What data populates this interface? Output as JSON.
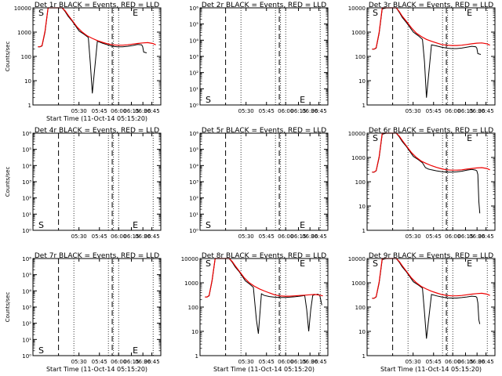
{
  "chart_data": [
    {
      "type": "line",
      "title": "Det 1r BLACK = Events, RED = LLD",
      "xlabel": "Start Time (11-Oct-14 05:15:20)",
      "ylabel": "Counts/sec",
      "scale": "log",
      "ylim": [
        1,
        10000
      ],
      "yticks": [
        "10000",
        "1000",
        "100",
        "10",
        "1"
      ],
      "xticks": [
        "05:30",
        "05:45",
        "06:00",
        "06:15",
        "06:30",
        "06:45"
      ],
      "markers": [
        {
          "label": "S",
          "x": 5.3
        },
        {
          "label": "E",
          "x": 6.32
        }
      ],
      "series": [
        {
          "color": "#000000",
          "x": [
            5.26,
            5.28,
            5.3,
            5.33,
            5.36,
            5.4,
            5.45,
            5.48,
            5.5,
            5.53,
            5.56,
            5.6,
            5.67,
            5.72,
            5.76,
            5.78,
            5.8,
            5.85,
            5.9,
            5.95,
            6.0,
            6.05,
            6.1,
            6.15,
            6.2,
            6.25,
            6.29,
            6.3,
            6.31,
            6.34
          ],
          "y": [
            250,
            250,
            270,
            1000,
            10000,
            12000,
            12000,
            12000,
            10000,
            7000,
            4500,
            2800,
            1100,
            800,
            600,
            50,
            3,
            420,
            350,
            300,
            260,
            250,
            250,
            260,
            280,
            310,
            300,
            250,
            150,
            140
          ]
        },
        {
          "color": "#ee0000",
          "x": [
            5.26,
            5.28,
            5.3,
            5.33,
            5.36,
            5.4,
            5.45,
            5.5,
            5.53,
            5.56,
            5.6,
            5.65,
            5.7,
            5.75,
            5.8,
            5.85,
            5.9,
            5.95,
            6.0,
            6.05,
            6.1,
            6.15,
            6.2,
            6.25,
            6.3,
            6.35,
            6.4,
            6.43
          ],
          "y": [
            250,
            250,
            280,
            1100,
            10000,
            12000,
            12000,
            10000,
            7500,
            5000,
            3000,
            1600,
            1000,
            700,
            550,
            450,
            380,
            330,
            300,
            290,
            290,
            300,
            320,
            340,
            360,
            370,
            340,
            300
          ]
        }
      ]
    },
    {
      "type": "line",
      "title": "Det 2r BLACK = Events, RED = LLD",
      "xlabel": "",
      "ylabel": "",
      "scale": "log",
      "ylim": [
        1,
        1000000
      ],
      "yticks": [
        "10⁶",
        "10⁵",
        "10⁴",
        "10³",
        "10²",
        "10¹",
        "10⁰"
      ],
      "xticks": [
        "05:30",
        "05:45",
        "06:00",
        "06:15",
        "06:30",
        "06:45"
      ],
      "markers": [
        {
          "label": "S",
          "x": 5.3
        },
        {
          "label": "E",
          "x": 6.32
        }
      ],
      "series": []
    },
    {
      "type": "line",
      "title": "Det 3r BLACK = Events, RED = LLD",
      "xlabel": "",
      "ylabel": "",
      "scale": "log",
      "ylim": [
        1,
        10000
      ],
      "yticks": [
        "10000",
        "1000",
        "100",
        "10",
        "1"
      ],
      "xticks": [
        "05:30",
        "05:45",
        "06:00",
        "06:15",
        "06:30",
        "06:45"
      ],
      "markers": [
        {
          "label": "S",
          "x": 5.3
        },
        {
          "label": "E",
          "x": 6.32
        }
      ],
      "series": [
        {
          "color": "#000000",
          "x": [
            5.26,
            5.28,
            5.3,
            5.33,
            5.36,
            5.4,
            5.45,
            5.48,
            5.5,
            5.53,
            5.56,
            5.6,
            5.67,
            5.72,
            5.76,
            5.78,
            5.8,
            5.85,
            5.9,
            5.95,
            6.0,
            6.05,
            6.1,
            6.15,
            6.2,
            6.25,
            6.29,
            6.3,
            6.31,
            6.34
          ],
          "y": [
            200,
            200,
            220,
            900,
            9000,
            12000,
            12000,
            12000,
            10000,
            6500,
            4000,
            2500,
            1000,
            700,
            500,
            60,
            2,
            300,
            270,
            240,
            220,
            210,
            210,
            220,
            240,
            260,
            250,
            220,
            130,
            120
          ]
        },
        {
          "color": "#ee0000",
          "x": [
            5.26,
            5.28,
            5.3,
            5.33,
            5.36,
            5.4,
            5.45,
            5.5,
            5.53,
            5.56,
            5.6,
            5.65,
            5.7,
            5.75,
            5.8,
            5.85,
            5.9,
            5.95,
            6.0,
            6.05,
            6.1,
            6.15,
            6.2,
            6.25,
            6.3,
            6.35,
            6.4,
            6.43
          ],
          "y": [
            200,
            200,
            230,
            1000,
            10000,
            12000,
            12000,
            10000,
            7000,
            4500,
            2800,
            1500,
            900,
            650,
            500,
            420,
            360,
            310,
            290,
            280,
            280,
            290,
            310,
            330,
            350,
            360,
            330,
            290
          ]
        }
      ]
    },
    {
      "type": "line",
      "title": "Det 4r BLACK = Events, RED = LLD",
      "xlabel": "",
      "ylabel": "Counts/sec",
      "scale": "log",
      "ylim": [
        1,
        1000000
      ],
      "yticks": [
        "10⁶",
        "10⁵",
        "10⁴",
        "10³",
        "10²",
        "10¹",
        "10⁰"
      ],
      "xticks": [
        "05:30",
        "05:45",
        "06:00",
        "06:15",
        "06:30",
        "06:45"
      ],
      "markers": [
        {
          "label": "S",
          "x": 5.3
        },
        {
          "label": "E",
          "x": 6.32
        }
      ],
      "series": []
    },
    {
      "type": "line",
      "title": "Det 5r BLACK = Events, RED = LLD",
      "xlabel": "",
      "ylabel": "",
      "scale": "log",
      "ylim": [
        1,
        1000000
      ],
      "yticks": [
        "10⁶",
        "10⁵",
        "10⁴",
        "10³",
        "10²",
        "10¹",
        "10⁰"
      ],
      "xticks": [
        "05:30",
        "05:45",
        "06:00",
        "06:15",
        "06:30",
        "06:45"
      ],
      "markers": [
        {
          "label": "S",
          "x": 5.3
        },
        {
          "label": "E",
          "x": 6.32
        }
      ],
      "series": []
    },
    {
      "type": "line",
      "title": "Det 6r BLACK = Events, RED = LLD",
      "xlabel": "",
      "ylabel": "",
      "scale": "log",
      "ylim": [
        1,
        10000
      ],
      "yticks": [
        "10000",
        "1000",
        "100",
        "10",
        "1"
      ],
      "xticks": [
        "05:30",
        "05:45",
        "06:00",
        "06:15",
        "06:30",
        "06:45"
      ],
      "markers": [
        {
          "label": "S",
          "x": 5.3
        },
        {
          "label": "E",
          "x": 6.32
        }
      ],
      "series": [
        {
          "color": "#000000",
          "x": [
            5.26,
            5.28,
            5.3,
            5.33,
            5.36,
            5.4,
            5.45,
            5.48,
            5.5,
            5.53,
            5.56,
            5.6,
            5.67,
            5.72,
            5.76,
            5.79,
            5.82,
            5.85,
            5.9,
            5.95,
            6.0,
            6.05,
            6.1,
            6.15,
            6.2,
            6.25,
            6.29,
            6.3,
            6.31,
            6.32,
            6.33
          ],
          "y": [
            250,
            250,
            280,
            1000,
            9000,
            12000,
            12000,
            12000,
            10000,
            7000,
            4500,
            2800,
            1100,
            800,
            600,
            380,
            330,
            310,
            280,
            260,
            250,
            250,
            255,
            270,
            300,
            320,
            300,
            280,
            200,
            15,
            5
          ]
        },
        {
          "color": "#ee0000",
          "x": [
            5.26,
            5.28,
            5.3,
            5.33,
            5.36,
            5.4,
            5.45,
            5.5,
            5.53,
            5.56,
            5.6,
            5.65,
            5.7,
            5.75,
            5.8,
            5.85,
            5.9,
            5.95,
            6.0,
            6.05,
            6.1,
            6.15,
            6.2,
            6.25,
            6.3,
            6.35,
            6.4,
            6.43
          ],
          "y": [
            250,
            250,
            290,
            1100,
            10000,
            12000,
            12000,
            10000,
            7500,
            5000,
            3000,
            1600,
            1000,
            700,
            560,
            460,
            390,
            340,
            310,
            300,
            300,
            310,
            330,
            350,
            370,
            380,
            350,
            310
          ]
        }
      ]
    },
    {
      "type": "line",
      "title": "Det 7r BLACK = Events, RED = LLD",
      "xlabel": "Start Time (11-Oct-14 05:15:20)",
      "ylabel": "Counts/sec",
      "scale": "log",
      "ylim": [
        1,
        1000000
      ],
      "yticks": [
        "10⁶",
        "10⁵",
        "10⁴",
        "10³",
        "10²",
        "10¹",
        "10⁰"
      ],
      "xticks": [
        "05:30",
        "05:45",
        "06:00",
        "06:15",
        "06:30",
        "06:45"
      ],
      "markers": [
        {
          "label": "S",
          "x": 5.3
        },
        {
          "label": "E",
          "x": 6.32
        }
      ],
      "series": []
    },
    {
      "type": "line",
      "title": "Det 8r BLACK = Events, RED = LLD",
      "xlabel": "Start Time (11-Oct-14 05:15:20)",
      "ylabel": "",
      "scale": "log",
      "ylim": [
        1,
        10000
      ],
      "yticks": [
        "10000",
        "1000",
        "100",
        "10",
        "1"
      ],
      "xticks": [
        "05:30",
        "05:45",
        "06:00",
        "06:15",
        "06:30",
        "06:45"
      ],
      "markers": [
        {
          "label": "S",
          "x": 5.3
        },
        {
          "label": "E",
          "x": 6.32
        }
      ],
      "series": [
        {
          "color": "#000000",
          "x": [
            5.26,
            5.28,
            5.3,
            5.33,
            5.36,
            5.4,
            5.45,
            5.48,
            5.5,
            5.53,
            5.56,
            5.6,
            5.66,
            5.7,
            5.74,
            5.77,
            5.79,
            5.82,
            5.85,
            5.9,
            5.95,
            6.0,
            6.05,
            6.1,
            6.15,
            6.2,
            6.25,
            6.27,
            6.29,
            6.31,
            6.33,
            6.35,
            6.38,
            6.4,
            6.42
          ],
          "y": [
            260,
            260,
            290,
            1200,
            10000,
            12000,
            12000,
            12000,
            10000,
            7000,
            4500,
            2800,
            1200,
            900,
            650,
            30,
            8,
            350,
            300,
            270,
            255,
            250,
            250,
            255,
            265,
            280,
            300,
            80,
            10,
            80,
            300,
            320,
            340,
            300,
            120
          ]
        },
        {
          "color": "#ee0000",
          "x": [
            5.26,
            5.28,
            5.3,
            5.33,
            5.36,
            5.4,
            5.45,
            5.5,
            5.53,
            5.56,
            5.6,
            5.65,
            5.7,
            5.75,
            5.8,
            5.85,
            5.9,
            5.95,
            6.0,
            6.05,
            6.1,
            6.15,
            6.2,
            6.25,
            6.3,
            6.35,
            6.4,
            6.43
          ],
          "y": [
            260,
            260,
            300,
            1300,
            10000,
            12000,
            12000,
            10000,
            7500,
            5000,
            3000,
            1600,
            1000,
            720,
            560,
            460,
            380,
            320,
            290,
            280,
            280,
            290,
            300,
            310,
            320,
            330,
            310,
            290
          ]
        }
      ]
    },
    {
      "type": "line",
      "title": "Det 9r BLACK = Events, RED = LLD",
      "xlabel": "Start Time (11-Oct-14 05:15:20)",
      "ylabel": "",
      "scale": "log",
      "ylim": [
        1,
        10000
      ],
      "yticks": [
        "10000",
        "1000",
        "100",
        "10",
        "1"
      ],
      "xticks": [
        "05:30",
        "05:45",
        "06:00",
        "06:15",
        "06:30",
        "06:45"
      ],
      "markers": [
        {
          "label": "S",
          "x": 5.3
        },
        {
          "label": "E",
          "x": 6.32
        }
      ],
      "series": [
        {
          "color": "#000000",
          "x": [
            5.26,
            5.28,
            5.3,
            5.33,
            5.36,
            5.4,
            5.45,
            5.48,
            5.5,
            5.53,
            5.56,
            5.6,
            5.67,
            5.72,
            5.76,
            5.78,
            5.8,
            5.85,
            5.9,
            5.95,
            6.0,
            6.05,
            6.1,
            6.15,
            6.2,
            6.25,
            6.29,
            6.3,
            6.31,
            6.32,
            6.33
          ],
          "y": [
            230,
            230,
            260,
            1000,
            9000,
            12000,
            12000,
            12000,
            10000,
            7000,
            4500,
            2800,
            1100,
            800,
            600,
            60,
            5,
            330,
            290,
            260,
            240,
            235,
            235,
            245,
            260,
            280,
            270,
            250,
            150,
            30,
            20
          ]
        },
        {
          "color": "#ee0000",
          "x": [
            5.26,
            5.28,
            5.3,
            5.33,
            5.36,
            5.4,
            5.45,
            5.5,
            5.53,
            5.56,
            5.6,
            5.65,
            5.7,
            5.75,
            5.8,
            5.85,
            5.9,
            5.95,
            6.0,
            6.05,
            6.1,
            6.15,
            6.2,
            6.25,
            6.3,
            6.35,
            6.4,
            6.43
          ],
          "y": [
            230,
            230,
            270,
            1100,
            10000,
            12000,
            12000,
            10000,
            7500,
            5000,
            3000,
            1600,
            1000,
            700,
            550,
            450,
            380,
            330,
            300,
            290,
            290,
            300,
            320,
            340,
            360,
            370,
            340,
            300
          ]
        }
      ]
    }
  ]
}
